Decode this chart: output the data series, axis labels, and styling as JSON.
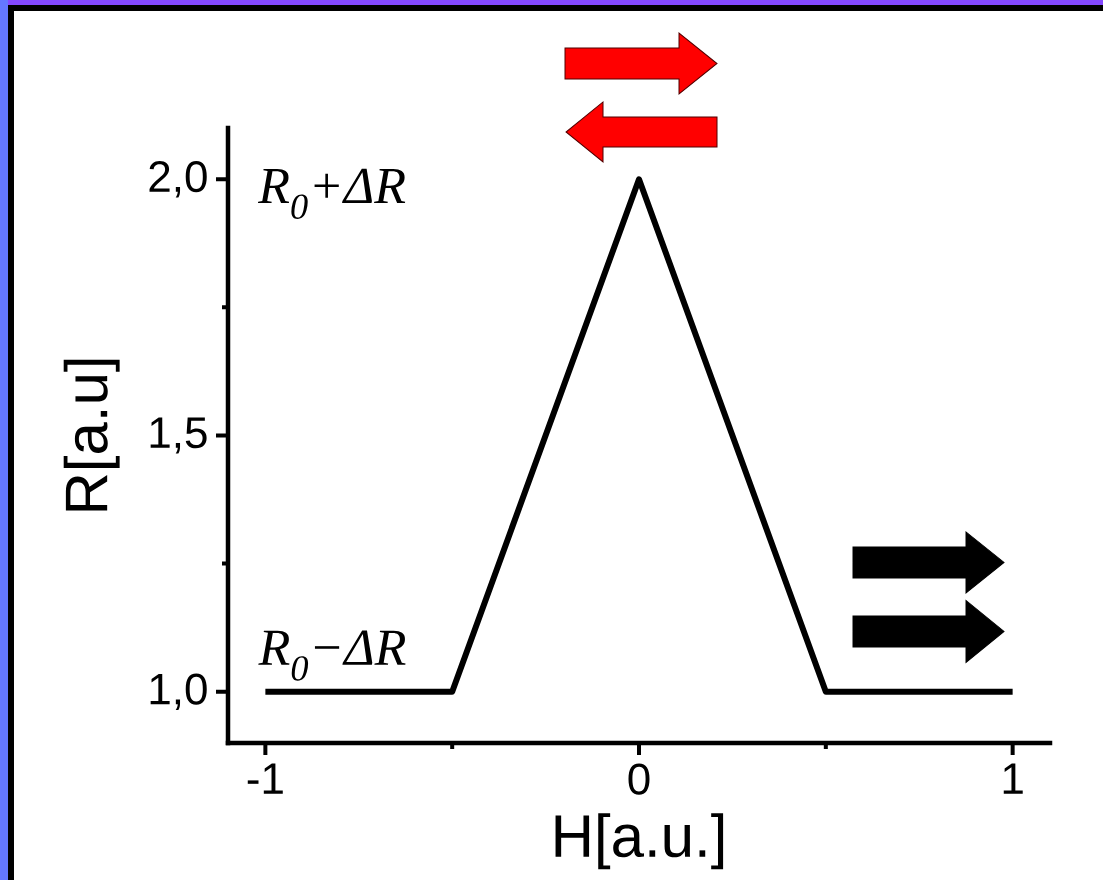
{
  "chart_data": {
    "type": "line",
    "xlabel": "H[a.u.]",
    "ylabel": "R[a.u]",
    "x": [
      -1,
      -0.5,
      0,
      0.5,
      1
    ],
    "series": [
      {
        "color": "#000000",
        "values": [
          1,
          1,
          2,
          1,
          1
        ]
      }
    ],
    "xlim": [
      -1.1,
      1.1
    ],
    "ylim": [
      0.9,
      2.1
    ],
    "xticks": [
      -1,
      {
        "value": -0.5,
        "label": null
      },
      0,
      {
        "value": 0.5,
        "label": null
      },
      1
    ],
    "yticks": [
      {
        "value": 1,
        "label": "1,0"
      },
      {
        "value": 1.25,
        "label": null
      },
      {
        "value": 1.5,
        "label": "1,5"
      },
      {
        "value": 1.75,
        "label": null
      },
      {
        "value": 2,
        "label": "2,0"
      }
    ],
    "annotations": [
      "R$_{0}$+ΔR",
      {
        "text": "R$_{0}$−ΔR",
        "x": -1,
        "y": 1
      }
    ]
  }
}
